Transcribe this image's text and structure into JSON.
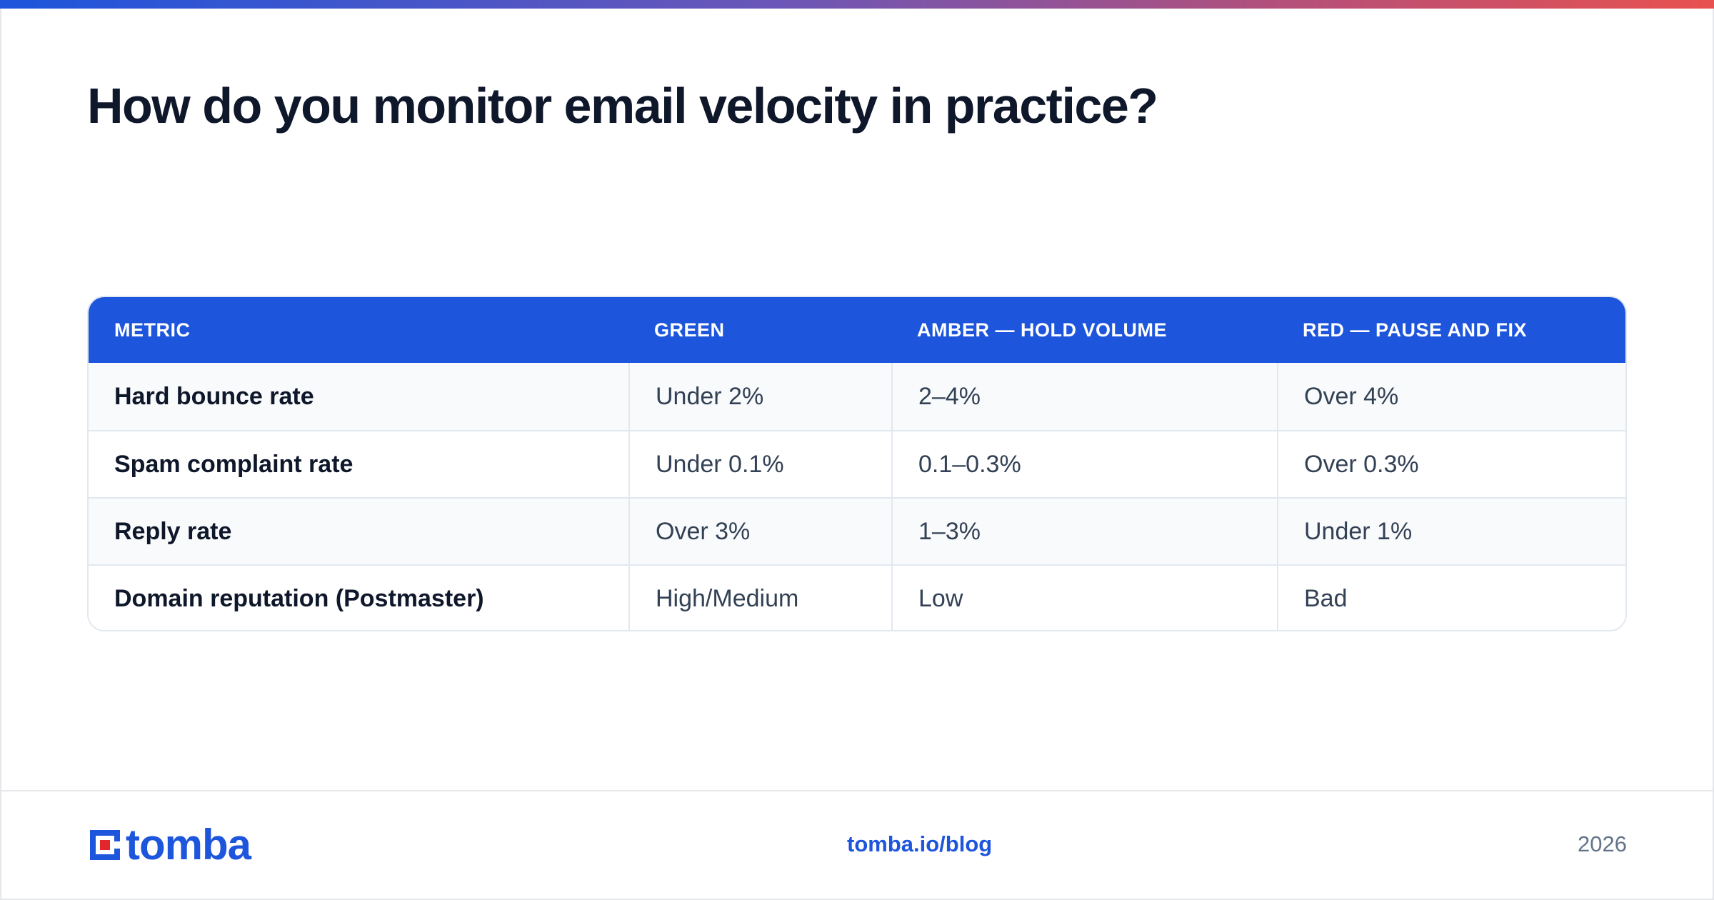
{
  "title": "How do you monitor email velocity in practice?",
  "table": {
    "headers": [
      "METRIC",
      "GREEN",
      "AMBER — HOLD VOLUME",
      "RED — PAUSE AND FIX"
    ],
    "rows": [
      [
        "Hard bounce rate",
        "Under 2%",
        "2–4%",
        "Over 4%"
      ],
      [
        "Spam complaint rate",
        "Under 0.1%",
        "0.1–0.3%",
        "Over 0.3%"
      ],
      [
        "Reply rate",
        "Over 3%",
        "1–3%",
        "Under 1%"
      ],
      [
        "Domain reputation (Postmaster)",
        "High/Medium",
        "Low",
        "Bad"
      ]
    ]
  },
  "footer": {
    "logo_text": "tomba",
    "link": "tomba.io/blog",
    "year": "2026"
  },
  "colors": {
    "brand_blue": "#1d55dc",
    "logo_red": "#e3262b",
    "title": "#0f172a"
  },
  "icons": [
    "tomba-logo-icon"
  ]
}
